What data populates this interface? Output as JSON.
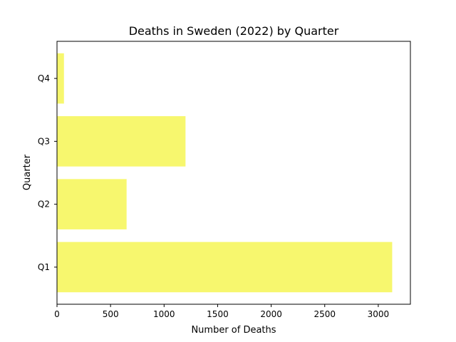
{
  "chart_data": {
    "type": "bar",
    "orientation": "horizontal",
    "title": "Deaths in Sweden (2022) by Quarter",
    "xlabel": "Number of Deaths",
    "ylabel": "Quarter",
    "categories": [
      "Q1",
      "Q2",
      "Q3",
      "Q4"
    ],
    "values": [
      3130,
      650,
      1200,
      65
    ],
    "xlim": [
      0,
      3300
    ],
    "xticks": [
      0,
      500,
      1000,
      1500,
      2000,
      2500,
      3000
    ],
    "grid": false,
    "bar_color": "#f7f76e"
  }
}
